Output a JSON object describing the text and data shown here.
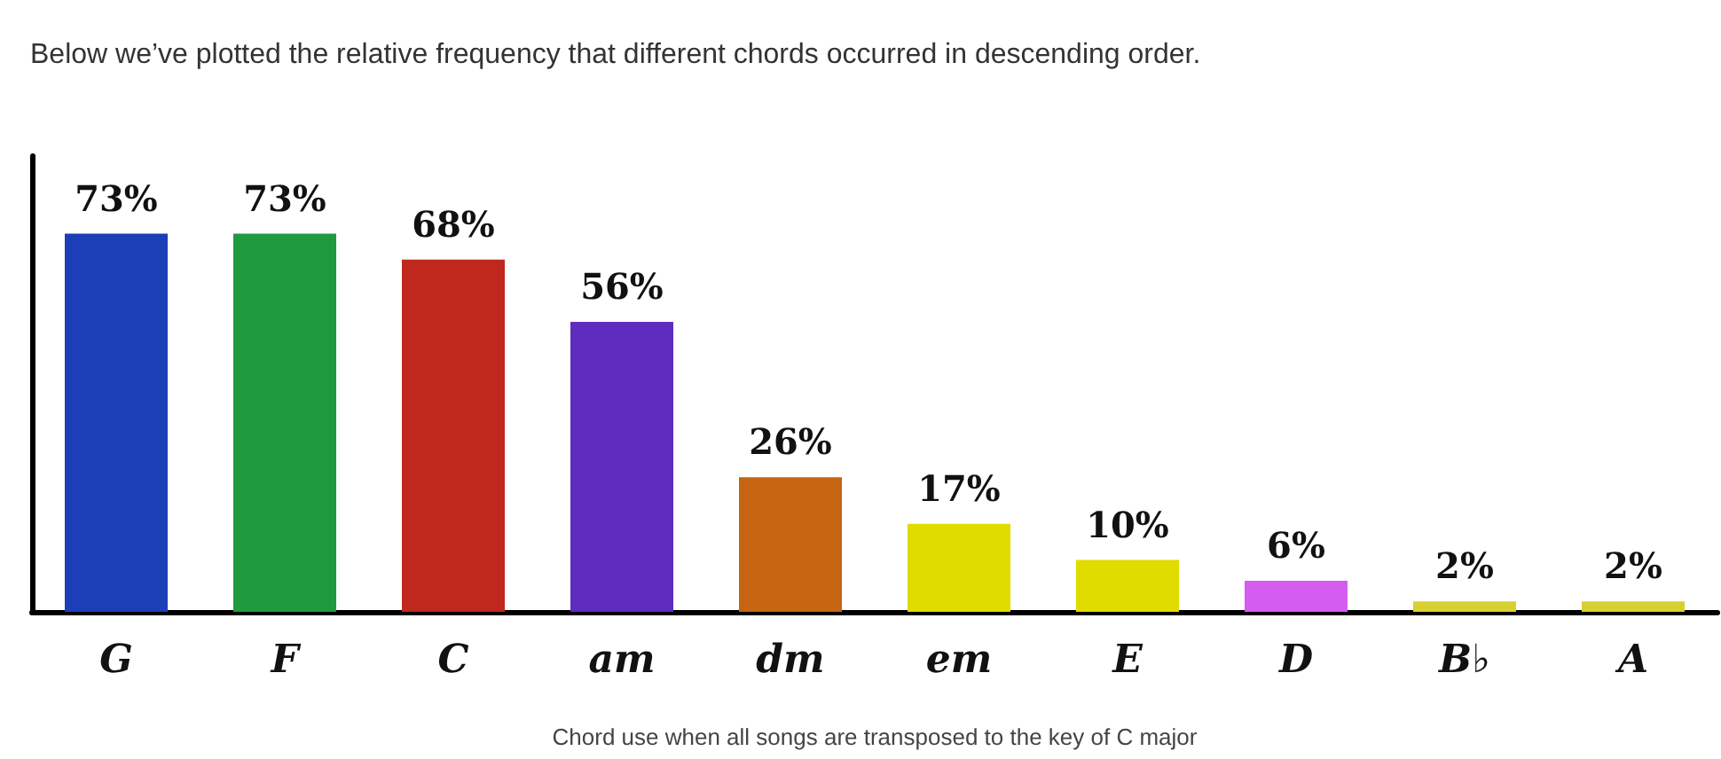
{
  "chart_data": {
    "type": "bar",
    "title": "Below we’ve plotted the relative frequency that different chords occurred in descending order.",
    "xlabel": "Chord use when all songs are transposed to the key of C major",
    "categories": [
      "G",
      "F",
      "C",
      "am",
      "dm",
      "em",
      "E",
      "D",
      "B♭",
      "A"
    ],
    "values": [
      73,
      73,
      68,
      56,
      26,
      17,
      10,
      6,
      2,
      2
    ],
    "colors": [
      "#1c3fb8",
      "#1f9a3f",
      "#c0281d",
      "#5e2bbf",
      "#c56512",
      "#e0dc00",
      "#e0dc00",
      "#d45cf0",
      "#d8d030",
      "#d8d030"
    ],
    "value_labels": [
      "73%",
      "73%",
      "68%",
      "56%",
      "26%",
      "17%",
      "10%",
      "6%",
      "2%",
      "2%"
    ],
    "ylim": [
      0,
      88
    ],
    "tick_labels": "x",
    "grid": false
  }
}
